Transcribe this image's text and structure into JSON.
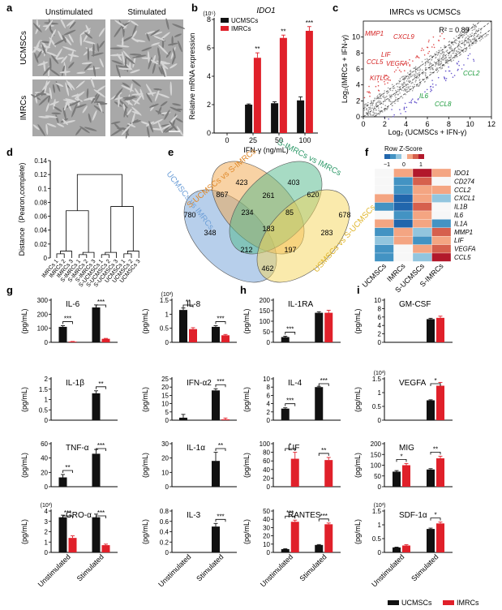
{
  "colors": {
    "ucmsc": "#111111",
    "imrc": "#e0202a",
    "venn": [
      "#6fa0d8",
      "#f2a54a",
      "#4fb88a",
      "#f5d55a"
    ]
  },
  "panel_a": {
    "letter": "a",
    "cols": [
      "Unstimulated",
      "Stimulated"
    ],
    "rows": [
      "UCMSCs",
      "IMRCs"
    ]
  },
  "panel_f": {
    "letter": "f",
    "scale_title": "Row Z-Score",
    "scale_ticks": [
      "−1",
      "0",
      "1"
    ],
    "genes": [
      "IDO1",
      "CD274",
      "CCL2",
      "CXCL1",
      "IL1B",
      "IL6",
      "IL1A",
      "MMP1",
      "LIF",
      "VEGFA",
      "CCL5"
    ],
    "columns": [
      "UCMSCs",
      "IMRCs",
      "S-UCMSCs",
      "S-IMRCs"
    ]
  },
  "legend": {
    "ucmsc": "UCMSCs",
    "imrc": "IMRCs"
  },
  "chart_data": [
    {
      "id": "b",
      "letter": "b",
      "type": "bar",
      "title": "IDO1",
      "exponent": "(10⁵)",
      "xlabel": "IFN-γ (ng/mL)",
      "ylabel": "Relative mRNA expression",
      "categories": [
        "0",
        "25",
        "50",
        "100"
      ],
      "ylim": [
        0,
        8
      ],
      "yticks": [
        0,
        2,
        4,
        6,
        8
      ],
      "legend": [
        "UCMSCs",
        "IMRCs"
      ],
      "series": [
        {
          "name": "UCMSCs",
          "values": [
            0,
            2.0,
            2.1,
            2.3
          ],
          "errors": [
            0,
            0.05,
            0.1,
            0.25
          ]
        },
        {
          "name": "IMRCs",
          "values": [
            0,
            5.3,
            6.7,
            7.2
          ],
          "errors": [
            0,
            0.35,
            0.2,
            0.3
          ]
        }
      ],
      "sig": [
        {
          "cat": 1,
          "text": "**"
        },
        {
          "cat": 2,
          "text": "**"
        },
        {
          "cat": 3,
          "text": "***"
        }
      ]
    },
    {
      "id": "c",
      "letter": "c",
      "type": "scatter",
      "title": "IMRCs vs UCMSCs",
      "xlabel": "Log₂ (UCMSCs + IFN-γ)",
      "ylabel": "Log₂(IMRCs + IFN-γ)",
      "xlim": [
        0,
        12
      ],
      "ylim": [
        0,
        12
      ],
      "xticks": [
        0,
        2,
        4,
        6,
        8,
        10,
        12
      ],
      "yticks": [
        0,
        2,
        4,
        6,
        8,
        10
      ],
      "r2": "R² = 0.89",
      "labels_up": [
        "MMP1",
        "CXCL9",
        "LIF",
        "CCL5",
        "VEGFA",
        "KITLG"
      ],
      "labels_down": [
        "CCL2",
        "IL6",
        "CCL8"
      ]
    },
    {
      "id": "d",
      "letter": "d",
      "type": "dendrogram",
      "ylabel": "Distance（Pearon,complete)",
      "ylim": [
        0,
        0.14
      ],
      "yticks": [
        0,
        0.02,
        0.04,
        0.06,
        0.08,
        0.1,
        0.12,
        0.14
      ],
      "leaves": [
        "IMRCs 1",
        "IMRCs 2",
        "IMRCs 3",
        "S-IMRCs 1",
        "S-IMRCs 2",
        "S-IMRCs 3",
        "S-UCMSCs 1",
        "S-UCMSCs 2",
        "S-UCMSCs 3",
        "UCMSCs 1",
        "UCMSCs 2",
        "UCMSCs 3"
      ]
    },
    {
      "id": "e",
      "letter": "e",
      "type": "venn",
      "sets": [
        "UCMSCs vs IMRCs",
        "S-UCMSCs vs S-IMRCs",
        "S-IMRCs vs IMRCs",
        "USMSCs vs S-UCMSCs"
      ],
      "regions": [
        {
          "value": "780"
        },
        {
          "value": "423"
        },
        {
          "value": "403"
        },
        {
          "value": "678"
        },
        {
          "value": "867"
        },
        {
          "value": "261"
        },
        {
          "value": "620"
        },
        {
          "value": "234"
        },
        {
          "value": "85"
        },
        {
          "value": "348"
        },
        {
          "value": "183"
        },
        {
          "value": "283"
        },
        {
          "value": "212"
        },
        {
          "value": "197"
        },
        {
          "value": "462"
        }
      ]
    },
    {
      "id": "g1",
      "letter": "g",
      "type": "bar",
      "title": "IL-6",
      "exponent": "",
      "ylabel": "(pg/mL)",
      "ylim": [
        0,
        300
      ],
      "yticks": [
        0,
        100,
        200,
        300
      ],
      "series": [
        {
          "name": "UCMSCs",
          "values": [
            110,
            248
          ],
          "errors": [
            8,
            18
          ]
        },
        {
          "name": "IMRCs",
          "values": [
            5,
            25
          ],
          "errors": [
            1,
            3
          ]
        }
      ],
      "sig": [
        {
          "cat": 0,
          "text": "***"
        },
        {
          "cat": 1,
          "text": "***"
        }
      ]
    },
    {
      "id": "g2",
      "type": "bar",
      "title": "IL-8",
      "exponent": "(10³)",
      "ylabel": "(pg/mL)",
      "ylim": [
        0,
        1.5
      ],
      "yticks": [
        0,
        0.5,
        1.0,
        1.5
      ],
      "series": [
        {
          "name": "UCMSCs",
          "values": [
            1.15,
            0.55
          ],
          "errors": [
            0.07,
            0.04
          ]
        },
        {
          "name": "IMRCs",
          "values": [
            0.47,
            0.25
          ],
          "errors": [
            0.05,
            0.03
          ]
        }
      ],
      "sig": [
        {
          "cat": 0,
          "text": "**"
        },
        {
          "cat": 1,
          "text": "***"
        }
      ]
    },
    {
      "id": "g3",
      "type": "bar",
      "title": "IL-1β",
      "exponent": "",
      "ylabel": "(pg/mL)",
      "ylim": [
        0,
        2.0
      ],
      "yticks": [
        0,
        0.5,
        1.0,
        1.5,
        2.0
      ],
      "series": [
        {
          "name": "UCMSCs",
          "values": [
            0,
            1.3
          ],
          "errors": [
            0,
            0.12
          ]
        },
        {
          "name": "IMRCs",
          "values": [
            0,
            0
          ],
          "errors": [
            0,
            0
          ]
        }
      ],
      "sig": [
        {
          "cat": 1,
          "text": "**"
        }
      ]
    },
    {
      "id": "g4",
      "type": "bar",
      "title": "IFN-α2",
      "exponent": "",
      "ylabel": "(pg/mL)",
      "ylim": [
        0,
        25
      ],
      "yticks": [
        0,
        5,
        10,
        15,
        20,
        25
      ],
      "series": [
        {
          "name": "UCMSCs",
          "values": [
            1.5,
            18
          ],
          "errors": [
            2,
            1
          ]
        },
        {
          "name": "IMRCs",
          "values": [
            0,
            0.5
          ],
          "errors": [
            0,
            0.8
          ]
        }
      ],
      "sig": [
        {
          "cat": 1,
          "text": "***"
        }
      ]
    },
    {
      "id": "g5",
      "type": "bar",
      "title": "TNF-α",
      "exponent": "",
      "ylabel": "(pg/mL)",
      "ylim": [
        0,
        60
      ],
      "yticks": [
        0,
        20,
        40,
        60
      ],
      "series": [
        {
          "name": "UCMSCs",
          "values": [
            13,
            46
          ],
          "errors": [
            4,
            6
          ]
        },
        {
          "name": "IMRCs",
          "values": [
            0,
            0
          ],
          "errors": [
            0,
            0
          ]
        }
      ],
      "sig": [
        {
          "cat": 0,
          "text": "**"
        },
        {
          "cat": 1,
          "text": "***"
        }
      ]
    },
    {
      "id": "g6",
      "type": "bar",
      "title": "IL-1α",
      "exponent": "",
      "ylabel": "(pg/mL)",
      "ylim": [
        0,
        30
      ],
      "yticks": [
        0,
        10,
        20,
        30
      ],
      "series": [
        {
          "name": "UCMSCs",
          "values": [
            0,
            18
          ],
          "errors": [
            0,
            6
          ]
        },
        {
          "name": "IMRCs",
          "values": [
            0,
            0
          ],
          "errors": [
            0,
            0
          ]
        }
      ],
      "sig": [
        {
          "cat": 1,
          "text": "**"
        }
      ]
    },
    {
      "id": "g7",
      "type": "bar",
      "title": "GRO-α",
      "exponent": "(10³)",
      "ylabel": "(pg/mL)",
      "categories": [
        "Unstimulated",
        "Stimulated"
      ],
      "ylim": [
        0,
        4
      ],
      "yticks": [
        0,
        1,
        2,
        3,
        4
      ],
      "series": [
        {
          "name": "UCMSCs",
          "values": [
            3.4,
            3.4
          ],
          "errors": [
            0.2,
            0.3
          ]
        },
        {
          "name": "IMRCs",
          "values": [
            1.4,
            0.7
          ],
          "errors": [
            0.2,
            0.1
          ]
        }
      ],
      "sig": [
        {
          "cat": 0,
          "text": "***"
        },
        {
          "cat": 1,
          "text": "***"
        }
      ]
    },
    {
      "id": "g8",
      "type": "bar",
      "title": "IL-3",
      "exponent": "",
      "ylabel": "(pg/mL)",
      "categories": [
        "Unstimulated",
        "Stimulated"
      ],
      "ylim": [
        0,
        0.8
      ],
      "yticks": [
        0,
        0.2,
        0.4,
        0.6,
        0.8
      ],
      "series": [
        {
          "name": "UCMSCs",
          "values": [
            0,
            0.5
          ],
          "errors": [
            0,
            0.06
          ]
        },
        {
          "name": "IMRCs",
          "values": [
            0,
            0
          ],
          "errors": [
            0,
            0
          ]
        }
      ],
      "sig": [
        {
          "cat": 1,
          "text": "***"
        }
      ]
    },
    {
      "id": "h1",
      "letter": "h",
      "type": "bar",
      "title": "IL-1RA",
      "exponent": "",
      "ylabel": "(pg/mL)",
      "ylim": [
        0,
        200
      ],
      "yticks": [
        0,
        50,
        100,
        150,
        200
      ],
      "series": [
        {
          "name": "UCMSCs",
          "values": [
            25,
            140
          ],
          "errors": [
            4,
            5
          ]
        },
        {
          "name": "IMRCs",
          "values": [
            0,
            140
          ],
          "errors": [
            0,
            12
          ]
        }
      ],
      "sig": [
        {
          "cat": 0,
          "text": "***"
        }
      ]
    },
    {
      "id": "h2",
      "type": "bar",
      "title": "IL-4",
      "exponent": "",
      "ylabel": "(pg/mL)",
      "ylim": [
        0,
        10
      ],
      "yticks": [
        0,
        2,
        4,
        6,
        8,
        10
      ],
      "series": [
        {
          "name": "UCMSCs",
          "values": [
            2.8,
            8
          ],
          "errors": [
            0.2,
            0.2
          ]
        },
        {
          "name": "IMRCs",
          "values": [
            0,
            0
          ],
          "errors": [
            0,
            0
          ]
        }
      ],
      "sig": [
        {
          "cat": 0,
          "text": "***"
        },
        {
          "cat": 1,
          "text": "***"
        }
      ]
    },
    {
      "id": "h3",
      "type": "bar",
      "title": "LIF",
      "exponent": "",
      "ylabel": "(pg/mL)",
      "ylim": [
        0,
        100
      ],
      "yticks": [
        0,
        20,
        40,
        60,
        80,
        100
      ],
      "series": [
        {
          "name": "UCMSCs",
          "values": [
            0,
            0
          ],
          "errors": [
            0,
            0
          ]
        },
        {
          "name": "IMRCs",
          "values": [
            65,
            62
          ],
          "errors": [
            15,
            6
          ]
        }
      ],
      "sig": [
        {
          "cat": 0,
          "text": "*"
        },
        {
          "cat": 1,
          "text": "**"
        }
      ]
    },
    {
      "id": "h4",
      "type": "bar",
      "title": "RANTES",
      "exponent": "",
      "ylabel": "(pg/mL)",
      "categories": [
        "Unstimulated",
        "Stimulated"
      ],
      "ylim": [
        0,
        50
      ],
      "yticks": [
        0,
        10,
        20,
        30,
        40,
        50
      ],
      "series": [
        {
          "name": "UCMSCs",
          "values": [
            4,
            9
          ],
          "errors": [
            0.5,
            0.5
          ]
        },
        {
          "name": "IMRCs",
          "values": [
            37,
            34
          ],
          "errors": [
            2,
            1.5
          ]
        }
      ],
      "sig": [
        {
          "cat": 0,
          "text": "***"
        },
        {
          "cat": 1,
          "text": "***"
        }
      ]
    },
    {
      "id": "i1",
      "letter": "i",
      "type": "bar",
      "title": "GM-CSF",
      "exponent": "",
      "ylabel": "(pg/mL)",
      "ylim": [
        0,
        10
      ],
      "yticks": [
        0,
        2,
        4,
        6,
        8,
        10
      ],
      "series": [
        {
          "name": "UCMSCs",
          "values": [
            0,
            5.5
          ],
          "errors": [
            0,
            0.2
          ]
        },
        {
          "name": "IMRCs",
          "values": [
            0,
            5.8
          ],
          "errors": [
            0,
            0.4
          ]
        }
      ],
      "sig": []
    },
    {
      "id": "i2",
      "type": "bar",
      "title": "VEGFA",
      "exponent": "(10³)",
      "ylabel": "(pg/mL)",
      "ylim": [
        0,
        1.5
      ],
      "yticks": [
        0,
        0.5,
        1.0,
        1.5
      ],
      "series": [
        {
          "name": "UCMSCs",
          "values": [
            0,
            0.72
          ],
          "errors": [
            0,
            0.02
          ]
        },
        {
          "name": "IMRCs",
          "values": [
            0,
            1.25
          ],
          "errors": [
            0,
            0.12
          ]
        }
      ],
      "sig": [
        {
          "cat": 1,
          "text": "*"
        }
      ]
    },
    {
      "id": "i3",
      "type": "bar",
      "title": "MIG",
      "exponent": "",
      "ylabel": "(pg/mL)",
      "ylim": [
        0,
        200
      ],
      "yticks": [
        0,
        50,
        100,
        150,
        200
      ],
      "series": [
        {
          "name": "UCMSCs",
          "values": [
            70,
            80
          ],
          "errors": [
            5,
            4
          ]
        },
        {
          "name": "IMRCs",
          "values": [
            100,
            132
          ],
          "errors": [
            8,
            10
          ]
        }
      ],
      "sig": [
        {
          "cat": 0,
          "text": "*"
        },
        {
          "cat": 1,
          "text": "**"
        }
      ]
    },
    {
      "id": "i4",
      "type": "bar",
      "title": "SDF-1α",
      "exponent": "(10³)",
      "ylabel": "(pg/mL)",
      "categories": [
        "Unstimulated",
        "Stimulated"
      ],
      "ylim": [
        0,
        1.5
      ],
      "yticks": [
        0,
        0.5,
        1.0,
        1.5
      ],
      "series": [
        {
          "name": "UCMSCs",
          "values": [
            0.18,
            0.85
          ],
          "errors": [
            0.01,
            0.03
          ]
        },
        {
          "name": "IMRCs",
          "values": [
            0.25,
            1.05
          ],
          "errors": [
            0.03,
            0.05
          ]
        }
      ],
      "sig": [
        {
          "cat": 1,
          "text": "*"
        }
      ]
    }
  ]
}
